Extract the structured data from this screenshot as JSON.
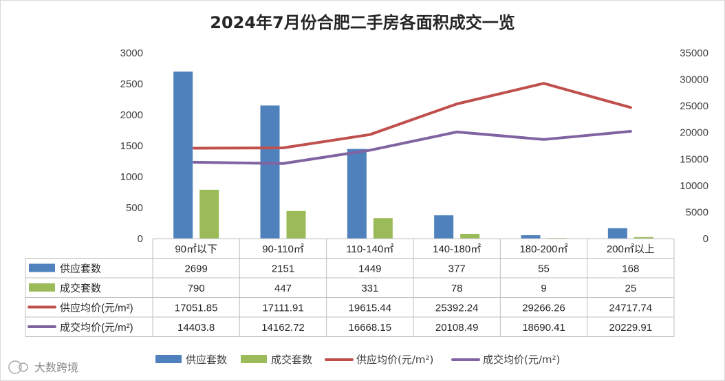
{
  "chart_data": {
    "type": "bar",
    "title": "2024年7月份合肥二手房各面积成交一览",
    "categories": [
      "90㎡以下",
      "90-110㎡",
      "110-140㎡",
      "140-180㎡",
      "180-200㎡",
      "200㎡以上"
    ],
    "series": [
      {
        "name": "供应套数",
        "type": "bar",
        "axis": "left",
        "color": "#4f81bd",
        "values": [
          "2699",
          "2151",
          "1449",
          "377",
          "55",
          "168"
        ]
      },
      {
        "name": "成交套数",
        "type": "bar",
        "axis": "left",
        "color": "#9bbb59",
        "values": [
          "790",
          "447",
          "331",
          "78",
          "9",
          "25"
        ]
      },
      {
        "name": "供应均价(元/m²)",
        "type": "line",
        "axis": "right",
        "color": "#c0504d",
        "values": [
          "17051.85",
          "17111.91",
          "19615.44",
          "25392.24",
          "29266.26",
          "24717.74"
        ]
      },
      {
        "name": "成交均价(元/m²)",
        "type": "line",
        "axis": "right",
        "color": "#8064a2",
        "values": [
          "14403.8",
          "14162.72",
          "16668.15",
          "20108.49",
          "18690.41",
          "20229.91"
        ]
      }
    ],
    "y_left": {
      "min": 0,
      "max": 3000,
      "ticks": [
        "0",
        "500",
        "1000",
        "1500",
        "2000",
        "2500",
        "3000"
      ]
    },
    "y_right": {
      "min": 0,
      "max": 35000,
      "ticks": [
        "0",
        "5000",
        "10000",
        "15000",
        "20000",
        "25000",
        "30000",
        "35000"
      ]
    },
    "grid": false,
    "legend": "bottom",
    "data_table": true
  },
  "watermark": {
    "text": "大数跨境",
    "icon": "logo-icon"
  }
}
